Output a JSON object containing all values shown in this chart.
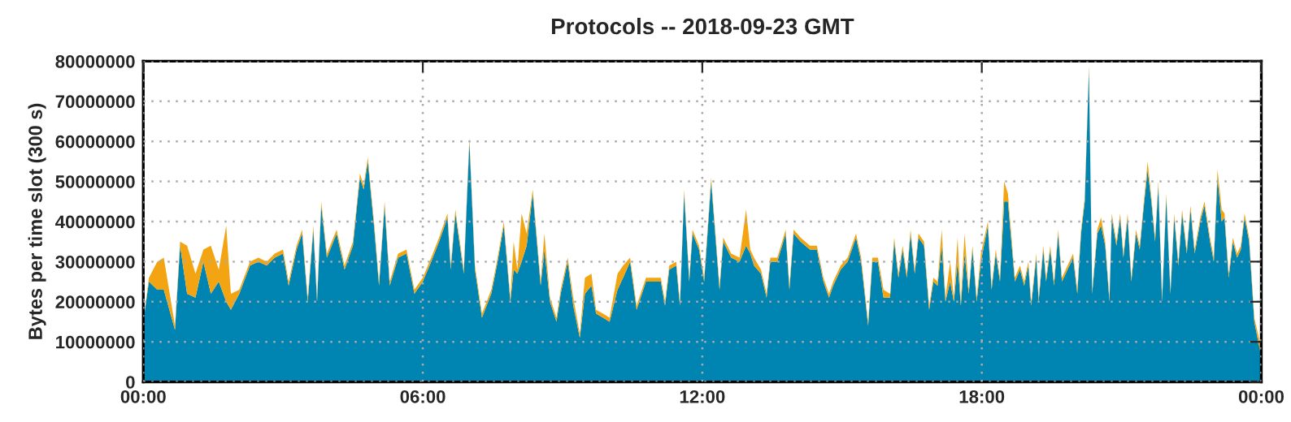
{
  "chart_data": {
    "type": "area",
    "stacked": true,
    "title": "Protocols -- 2018-09-23 GMT",
    "ylabel": "Bytes per time slot (300 s)",
    "x": [
      0,
      0.12,
      0.3,
      0.44,
      0.68,
      0.79,
      0.94,
      1.12,
      1.29,
      1.45,
      1.62,
      1.78,
      1.88,
      2.06,
      2.29,
      2.47,
      2.65,
      2.82,
      3.0,
      3.12,
      3.29,
      3.41,
      3.53,
      3.65,
      3.73,
      3.82,
      3.94,
      4.15,
      4.32,
      4.5,
      4.65,
      4.73,
      4.82,
      4.96,
      5.06,
      5.18,
      5.29,
      5.47,
      5.65,
      5.82,
      6.0,
      6.18,
      6.35,
      6.53,
      6.6,
      6.7,
      6.88,
      7.0,
      7.12,
      7.27,
      7.47,
      7.59,
      7.74,
      7.88,
      7.95,
      8.03,
      8.12,
      8.23,
      8.36,
      8.53,
      8.61,
      8.73,
      8.87,
      8.96,
      9.11,
      9.23,
      9.37,
      9.48,
      9.62,
      9.72,
      9.87,
      10.01,
      10.18,
      10.3,
      10.45,
      10.59,
      10.79,
      10.94,
      11.11,
      11.2,
      11.29,
      11.44,
      11.52,
      11.61,
      11.72,
      11.79,
      11.93,
      12.04,
      12.19,
      12.37,
      12.45,
      12.62,
      12.8,
      12.94,
      13.03,
      13.11,
      13.26,
      13.38,
      13.46,
      13.61,
      13.79,
      13.87,
      13.96,
      14.11,
      14.31,
      14.46,
      14.6,
      14.72,
      14.81,
      14.97,
      15.12,
      15.3,
      15.41,
      15.56,
      15.65,
      15.77,
      15.89,
      16.03,
      16.12,
      16.21,
      16.3,
      16.39,
      16.47,
      16.56,
      16.64,
      16.76,
      16.87,
      16.96,
      17.05,
      17.14,
      17.22,
      17.32,
      17.4,
      17.48,
      17.55,
      17.63,
      17.72,
      17.8,
      17.89,
      17.98,
      18.13,
      18.21,
      18.3,
      18.39,
      18.48,
      18.56,
      18.71,
      18.82,
      18.91,
      19.0,
      19.06,
      19.17,
      19.22,
      19.32,
      19.38,
      19.47,
      19.55,
      19.64,
      19.72,
      19.96,
      20.05,
      20.13,
      20.21,
      20.3,
      20.37,
      20.48,
      20.56,
      20.65,
      20.74,
      20.79,
      20.89,
      20.97,
      21.04,
      21.13,
      21.21,
      21.31,
      21.39,
      21.47,
      21.56,
      21.64,
      21.72,
      21.79,
      21.87,
      21.96,
      22.05,
      22.13,
      22.22,
      22.3,
      22.4,
      22.48,
      22.57,
      22.69,
      22.78,
      22.9,
      22.98,
      23.06,
      23.15,
      23.21,
      23.3,
      23.39,
      23.48,
      23.56,
      23.64,
      23.74,
      23.85,
      23.97,
      24
    ],
    "series": [
      {
        "color": "#0085b2",
        "values": [
          15000000,
          25000000,
          23000000,
          23000000,
          13000000,
          34000000,
          22000000,
          21000000,
          30000000,
          22000000,
          25000000,
          20000000,
          18000000,
          22000000,
          29000000,
          30000000,
          29000000,
          31000000,
          32000000,
          24000000,
          33000000,
          37000000,
          20000000,
          38000000,
          20000000,
          44000000,
          31000000,
          37000000,
          28000000,
          34000000,
          51000000,
          48000000,
          55000000,
          38000000,
          24000000,
          44000000,
          24000000,
          31000000,
          32000000,
          22000000,
          25000000,
          30000000,
          35000000,
          41000000,
          28000000,
          42000000,
          27000000,
          60000000,
          28000000,
          16000000,
          22000000,
          29000000,
          39000000,
          20000000,
          28000000,
          27000000,
          30000000,
          34000000,
          47000000,
          24000000,
          33000000,
          20000000,
          15000000,
          22000000,
          30000000,
          19000000,
          11000000,
          22000000,
          24000000,
          17000000,
          16000000,
          15000000,
          23000000,
          26000000,
          30000000,
          18000000,
          25000000,
          25000000,
          25000000,
          19000000,
          28000000,
          29000000,
          19000000,
          47000000,
          25000000,
          37000000,
          33000000,
          25000000,
          50000000,
          23000000,
          35000000,
          31000000,
          30000000,
          34000000,
          32000000,
          29000000,
          27000000,
          21000000,
          30000000,
          30000000,
          37000000,
          23000000,
          37000000,
          35000000,
          33000000,
          33000000,
          25000000,
          21000000,
          24000000,
          28000000,
          30000000,
          36000000,
          30000000,
          14000000,
          30000000,
          30000000,
          21000000,
          21000000,
          35000000,
          26000000,
          33000000,
          26000000,
          37000000,
          27000000,
          36000000,
          34000000,
          18000000,
          25000000,
          24000000,
          34000000,
          20000000,
          25000000,
          20000000,
          30000000,
          19000000,
          32000000,
          22000000,
          33000000,
          20000000,
          30000000,
          39000000,
          23000000,
          32000000,
          25000000,
          45000000,
          45000000,
          25000000,
          28000000,
          24000000,
          29000000,
          19000000,
          31000000,
          20000000,
          33000000,
          25000000,
          33000000,
          24000000,
          37000000,
          25000000,
          31000000,
          22000000,
          37000000,
          45000000,
          78000000,
          22000000,
          37000000,
          39000000,
          34000000,
          20000000,
          41000000,
          34000000,
          41000000,
          31000000,
          41000000,
          25000000,
          37000000,
          33000000,
          43000000,
          53000000,
          45000000,
          35000000,
          49000000,
          20000000,
          46000000,
          22000000,
          41000000,
          29000000,
          42000000,
          32000000,
          43000000,
          32000000,
          40000000,
          44000000,
          35000000,
          30000000,
          51000000,
          40000000,
          41000000,
          26000000,
          35000000,
          31000000,
          33000000,
          41000000,
          35000000,
          15000000,
          8000000,
          5000000
        ]
      },
      {
        "color": "#f2a413",
        "values": [
          0,
          1000000,
          7000000,
          8000000,
          1000000,
          1000000,
          12000000,
          6000000,
          3000000,
          12000000,
          3000000,
          19000000,
          4000000,
          1000000,
          1000000,
          1000000,
          1000000,
          1000000,
          1000000,
          1000000,
          1000000,
          1000000,
          1000000,
          1000000,
          1000000,
          1000000,
          1000000,
          1000000,
          1000000,
          1000000,
          1000000,
          1000000,
          1000000,
          1000000,
          1000000,
          1000000,
          1000000,
          1000000,
          1000000,
          1000000,
          1000000,
          1000000,
          1000000,
          1000000,
          1000000,
          1000000,
          1000000,
          1000000,
          1000000,
          1000000,
          1000000,
          1000000,
          1000000,
          1000000,
          7000000,
          1000000,
          12000000,
          3000000,
          1000000,
          1000000,
          4000000,
          1000000,
          1000000,
          1000000,
          1000000,
          2000000,
          1000000,
          4000000,
          3000000,
          1000000,
          1000000,
          1000000,
          4000000,
          3000000,
          1000000,
          1000000,
          1000000,
          1000000,
          1000000,
          1000000,
          1000000,
          1000000,
          1000000,
          1000000,
          1000000,
          1000000,
          1000000,
          1000000,
          1000000,
          1000000,
          1000000,
          1000000,
          1000000,
          9000000,
          1000000,
          2000000,
          1000000,
          1000000,
          1000000,
          1000000,
          1000000,
          1000000,
          1000000,
          1000000,
          1000000,
          1000000,
          1000000,
          1000000,
          1000000,
          1000000,
          1000000,
          1000000,
          1000000,
          1000000,
          1000000,
          1000000,
          2000000,
          1000000,
          1000000,
          1000000,
          1000000,
          1000000,
          1000000,
          1000000,
          1000000,
          1000000,
          1000000,
          1000000,
          1000000,
          4000000,
          1000000,
          5000000,
          1000000,
          6000000,
          1000000,
          5000000,
          1000000,
          1000000,
          1000000,
          2000000,
          1000000,
          1000000,
          1000000,
          1000000,
          5000000,
          2000000,
          1000000,
          1000000,
          1000000,
          1000000,
          1000000,
          1000000,
          1000000,
          1000000,
          1000000,
          1000000,
          1000000,
          1000000,
          1000000,
          1000000,
          1000000,
          1000000,
          1000000,
          1000000,
          1000000,
          1000000,
          2000000,
          1000000,
          1000000,
          1000000,
          1000000,
          1000000,
          1000000,
          1000000,
          1000000,
          1000000,
          1000000,
          1000000,
          2000000,
          1000000,
          1000000,
          1000000,
          1000000,
          1000000,
          1000000,
          1000000,
          1000000,
          1000000,
          1000000,
          1000000,
          1000000,
          1000000,
          1000000,
          1000000,
          1000000,
          2000000,
          3000000,
          1000000,
          1000000,
          1000000,
          1000000,
          1000000,
          1000000,
          1000000,
          1000000,
          2000000,
          1000000
        ]
      }
    ],
    "xlim": [
      0,
      24
    ],
    "xticks": [
      {
        "value": 0,
        "label": "00:00"
      },
      {
        "value": 6,
        "label": "06:00"
      },
      {
        "value": 12,
        "label": "12:00"
      },
      {
        "value": 18,
        "label": "18:00"
      },
      {
        "value": 24,
        "label": "00:00"
      }
    ],
    "ylim": [
      0,
      80000000
    ],
    "yticks": [
      0,
      10000000,
      20000000,
      30000000,
      40000000,
      50000000,
      60000000,
      70000000,
      80000000
    ],
    "grid": true
  }
}
